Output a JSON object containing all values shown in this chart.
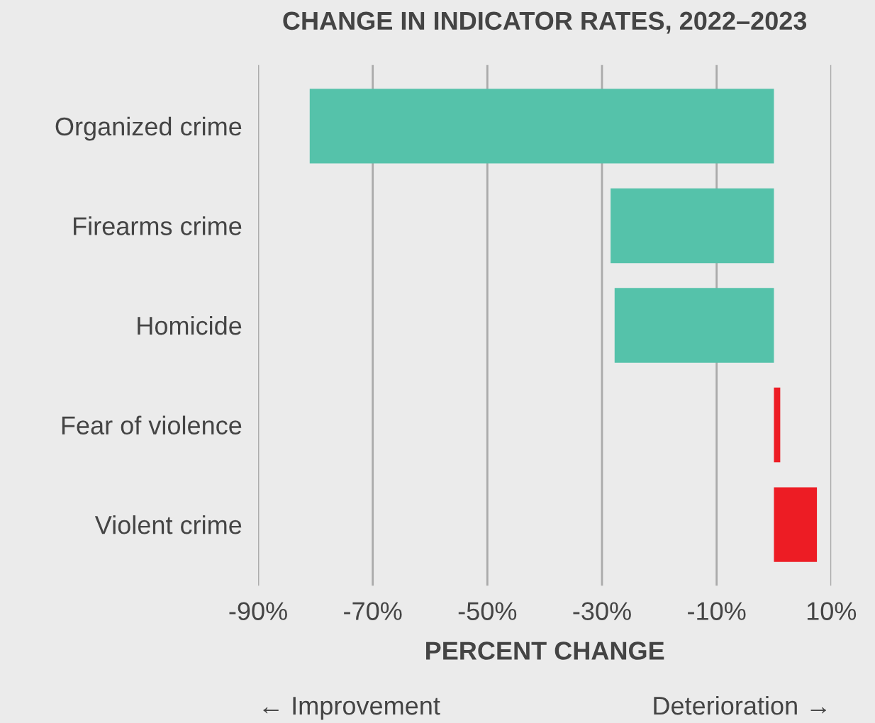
{
  "chart_data": {
    "type": "bar",
    "orientation": "horizontal",
    "title": "CHANGE IN INDICATOR RATES, 2022–2023",
    "xlabel": "PERCENT CHANGE",
    "categories": [
      "Organized crime",
      "Firearms crime",
      "Homicide",
      "Fear of violence",
      "Violent crime"
    ],
    "values": [
      -81,
      -28.5,
      -27.8,
      1.1,
      7.5
    ],
    "colors": [
      "#55c2aa",
      "#55c2aa",
      "#55c2aa",
      "#ed1c24",
      "#ed1c24"
    ],
    "xlim": [
      -90,
      10
    ],
    "xticks": [
      {
        "value": -90,
        "label": "-90%"
      },
      {
        "value": -70,
        "label": "-70%"
      },
      {
        "value": -50,
        "label": "-50%"
      },
      {
        "value": -30,
        "label": "-30%"
      },
      {
        "value": -10,
        "label": "-10%"
      },
      {
        "value": 10,
        "label": "10%"
      }
    ],
    "grid": "x",
    "annotations": [
      "← Improvement",
      "Deterioration →"
    ]
  }
}
